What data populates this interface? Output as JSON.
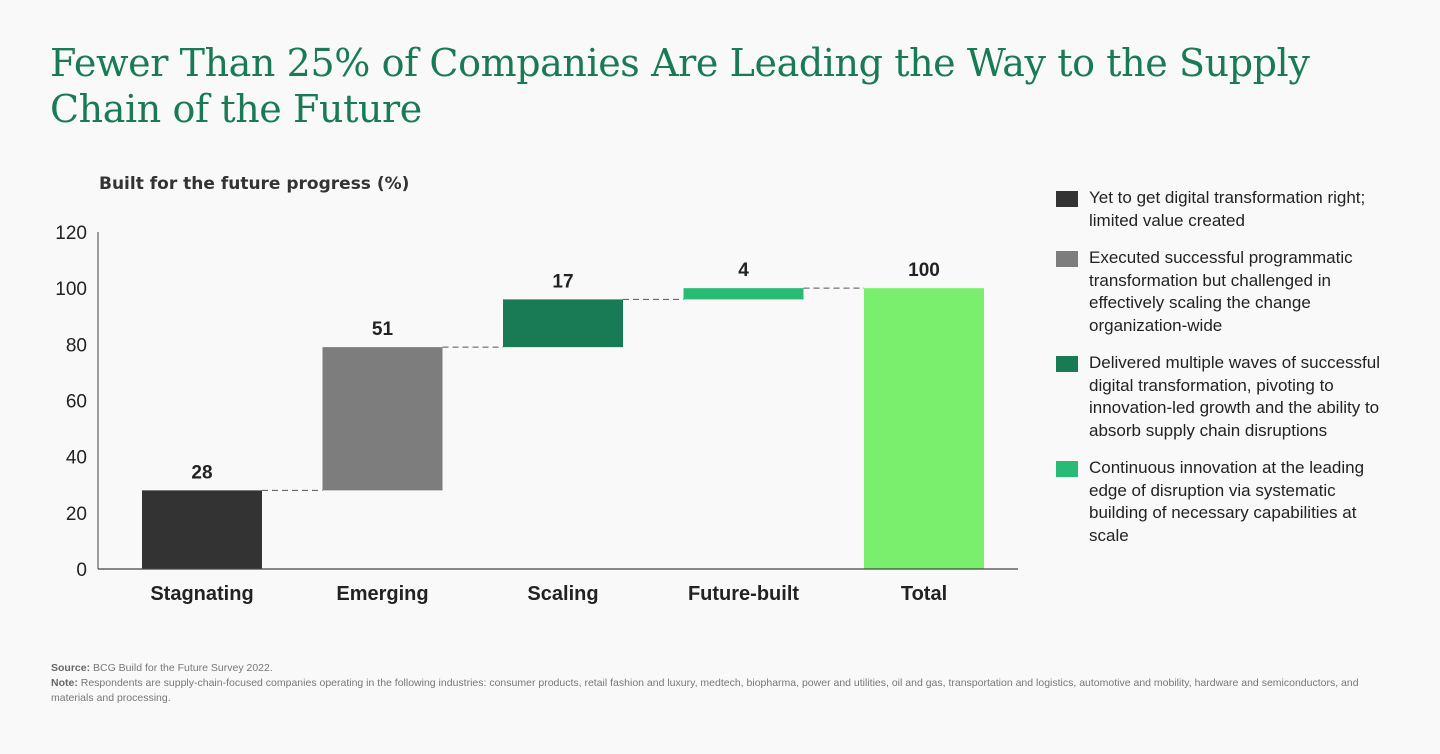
{
  "title": "Fewer Than 25% of Companies Are Leading the Way to the Supply Chain of the Future",
  "chart_data": {
    "type": "waterfall",
    "subtitle": "Built for the future progress (%)",
    "categories": [
      "Stagnating",
      "Emerging",
      "Scaling",
      "Future-built",
      "Total"
    ],
    "values": [
      28,
      51,
      17,
      4,
      100
    ],
    "bases": [
      0,
      28,
      79,
      96,
      0
    ],
    "labels": [
      "28",
      "51",
      "17",
      "4",
      "100"
    ],
    "colors": [
      "#333333",
      "#7d7d7d",
      "#197a56",
      "#29ba74",
      "#7aef6e"
    ],
    "yticks": [
      "0",
      "20",
      "40",
      "60",
      "80",
      "100",
      "120"
    ],
    "ylim": [
      0,
      120
    ],
    "xlabel": "",
    "ylabel": ""
  },
  "legend": [
    {
      "text": "Yet to get digital transformation right; limited value created",
      "color": "#333333"
    },
    {
      "text": "Executed successful programmatic transformation but challenged in effectively scaling the change organization-wide",
      "color": "#7d7d7d"
    },
    {
      "text": "Delivered multiple waves of successful digital transformation, pivoting to innovation-led growth and the ability to absorb supply chain disruptions",
      "color": "#197a56"
    },
    {
      "text": "Continuous innovation at the leading edge of disruption via systematic building of necessary capabilities at scale",
      "color": "#29ba74"
    }
  ],
  "footnote": {
    "source_label": "Source:",
    "source_text": " BCG Build for the Future Survey 2022.",
    "note_label": "Note:",
    "note_text": " Respondents are supply-chain-focused companies operating in the following industries: consumer products, retail fashion and luxury, medtech, biopharma, power and utilities, oil and gas, transportation and logistics, automotive and mobility, hardware and semiconductors, and materials and processing."
  }
}
